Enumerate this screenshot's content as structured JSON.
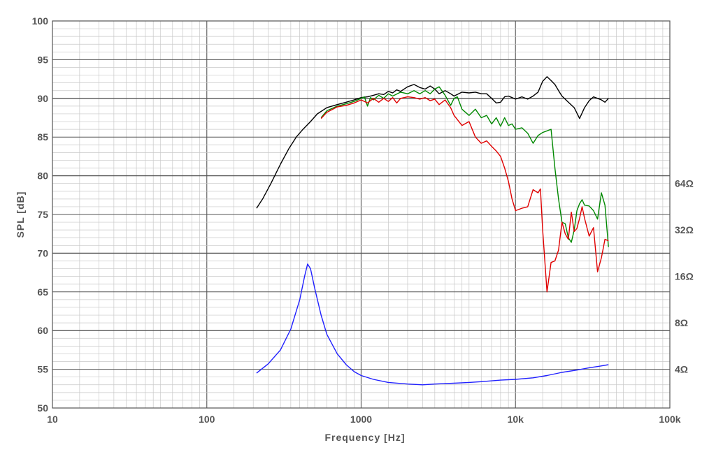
{
  "chart_data": {
    "type": "line",
    "xlabel": "Frequency [Hz]",
    "ylabel": "SPL [dB]",
    "x_scale": "log",
    "xlim": [
      10,
      100000
    ],
    "ylim": [
      50,
      100
    ],
    "grid": true,
    "x_ticks": [
      {
        "value": 10,
        "label": "10"
      },
      {
        "value": 100,
        "label": "100"
      },
      {
        "value": 1000,
        "label": "1000"
      },
      {
        "value": 10000,
        "label": "10k"
      },
      {
        "value": 100000,
        "label": "100k"
      }
    ],
    "y_ticks": [
      {
        "value": 50,
        "label": "50"
      },
      {
        "value": 55,
        "label": "55"
      },
      {
        "value": 60,
        "label": "60"
      },
      {
        "value": 65,
        "label": "65"
      },
      {
        "value": 70,
        "label": "70"
      },
      {
        "value": 75,
        "label": "75"
      },
      {
        "value": 80,
        "label": "80"
      },
      {
        "value": 85,
        "label": "85"
      },
      {
        "value": 90,
        "label": "90"
      },
      {
        "value": 95,
        "label": "95"
      },
      {
        "value": 100,
        "label": "100"
      }
    ],
    "right_axis_ticks": [
      {
        "at_spl": 55,
        "label": "4Ω"
      },
      {
        "at_spl": 61,
        "label": "8Ω"
      },
      {
        "at_spl": 67,
        "label": "16Ω"
      },
      {
        "at_spl": 73,
        "label": "32Ω"
      },
      {
        "at_spl": 79,
        "label": "64Ω"
      }
    ],
    "series": [
      {
        "color": "#000000",
        "points": [
          [
            210,
            75.8
          ],
          [
            230,
            77
          ],
          [
            260,
            79
          ],
          [
            300,
            81.5
          ],
          [
            340,
            83.5
          ],
          [
            380,
            85
          ],
          [
            420,
            86
          ],
          [
            470,
            87
          ],
          [
            520,
            88
          ],
          [
            600,
            88.8
          ],
          [
            700,
            89.2
          ],
          [
            800,
            89.5
          ],
          [
            900,
            89.8
          ],
          [
            1000,
            90.1
          ],
          [
            1100,
            90.2
          ],
          [
            1200,
            90.4
          ],
          [
            1300,
            90.6
          ],
          [
            1400,
            90.5
          ],
          [
            1500,
            90.9
          ],
          [
            1600,
            90.7
          ],
          [
            1700,
            91.1
          ],
          [
            1800,
            90.9
          ],
          [
            2000,
            91.5
          ],
          [
            2200,
            91.8
          ],
          [
            2400,
            91.4
          ],
          [
            2600,
            91.2
          ],
          [
            2800,
            91.6
          ],
          [
            3000,
            91.2
          ],
          [
            3200,
            90.6
          ],
          [
            3500,
            91
          ],
          [
            3800,
            90.6
          ],
          [
            4000,
            90.3
          ],
          [
            4500,
            90.8
          ],
          [
            5000,
            90.7
          ],
          [
            5500,
            90.8
          ],
          [
            6000,
            90.6
          ],
          [
            6500,
            90.6
          ],
          [
            7000,
            90
          ],
          [
            7500,
            89.4
          ],
          [
            8000,
            89.5
          ],
          [
            8500,
            90.2
          ],
          [
            9000,
            90.3
          ],
          [
            9500,
            90.1
          ],
          [
            10000,
            89.9
          ],
          [
            11000,
            90.2
          ],
          [
            12000,
            89.9
          ],
          [
            13000,
            90.3
          ],
          [
            14000,
            90.8
          ],
          [
            15000,
            92.2
          ],
          [
            16000,
            92.8
          ],
          [
            17000,
            92.3
          ],
          [
            18000,
            91.8
          ],
          [
            19000,
            91
          ],
          [
            20000,
            90.3
          ],
          [
            22000,
            89.5
          ],
          [
            24000,
            88.8
          ],
          [
            26000,
            87.4
          ],
          [
            28000,
            88.8
          ],
          [
            30000,
            89.7
          ],
          [
            32000,
            90.2
          ],
          [
            34000,
            90
          ],
          [
            36000,
            89.8
          ],
          [
            38000,
            89.5
          ],
          [
            40000,
            90
          ]
        ]
      },
      {
        "color": "#008800",
        "points": [
          [
            550,
            87.5
          ],
          [
            600,
            88.4
          ],
          [
            700,
            89
          ],
          [
            800,
            89.3
          ],
          [
            900,
            89.6
          ],
          [
            1000,
            90
          ],
          [
            1050,
            90.2
          ],
          [
            1100,
            89
          ],
          [
            1150,
            90.1
          ],
          [
            1200,
            89.8
          ],
          [
            1300,
            90.4
          ],
          [
            1400,
            90
          ],
          [
            1500,
            90.6
          ],
          [
            1600,
            90.3
          ],
          [
            1800,
            90.8
          ],
          [
            2000,
            90.6
          ],
          [
            2200,
            91
          ],
          [
            2400,
            90.6
          ],
          [
            2600,
            91
          ],
          [
            2800,
            90.6
          ],
          [
            3000,
            91.2
          ],
          [
            3200,
            91.5
          ],
          [
            3500,
            90.4
          ],
          [
            3800,
            89.1
          ],
          [
            4000,
            90
          ],
          [
            4200,
            90.2
          ],
          [
            4500,
            88.6
          ],
          [
            5000,
            87.8
          ],
          [
            5500,
            88.6
          ],
          [
            6000,
            87.5
          ],
          [
            6500,
            87.8
          ],
          [
            7000,
            86.7
          ],
          [
            7500,
            87.5
          ],
          [
            8000,
            86.4
          ],
          [
            8500,
            87.5
          ],
          [
            9000,
            86.5
          ],
          [
            9500,
            86.7
          ],
          [
            10000,
            86
          ],
          [
            11000,
            86.2
          ],
          [
            12000,
            85.5
          ],
          [
            13000,
            84.2
          ],
          [
            14000,
            85.2
          ],
          [
            15000,
            85.6
          ],
          [
            16000,
            85.8
          ],
          [
            17000,
            86
          ],
          [
            18000,
            81
          ],
          [
            19000,
            77
          ],
          [
            20000,
            74
          ],
          [
            21000,
            73.8
          ],
          [
            22000,
            72
          ],
          [
            23000,
            71.4
          ],
          [
            24000,
            73
          ],
          [
            25000,
            75.5
          ],
          [
            26000,
            76.4
          ],
          [
            27000,
            76.9
          ],
          [
            28000,
            76.2
          ],
          [
            30000,
            76.1
          ],
          [
            32000,
            75.5
          ],
          [
            34000,
            74.4
          ],
          [
            36000,
            77.8
          ],
          [
            38000,
            76.2
          ],
          [
            40000,
            70.8
          ]
        ]
      },
      {
        "color": "#e00000",
        "points": [
          [
            550,
            87.4
          ],
          [
            600,
            88.2
          ],
          [
            700,
            88.9
          ],
          [
            800,
            89.1
          ],
          [
            900,
            89.4
          ],
          [
            1000,
            89.8
          ],
          [
            1100,
            89.4
          ],
          [
            1200,
            90
          ],
          [
            1300,
            89.5
          ],
          [
            1400,
            90
          ],
          [
            1500,
            89.6
          ],
          [
            1600,
            90.1
          ],
          [
            1700,
            89.4
          ],
          [
            1800,
            90
          ],
          [
            2000,
            90.2
          ],
          [
            2200,
            90.1
          ],
          [
            2400,
            89.9
          ],
          [
            2600,
            90.1
          ],
          [
            2800,
            89.7
          ],
          [
            3000,
            89.9
          ],
          [
            3200,
            89.2
          ],
          [
            3500,
            89.8
          ],
          [
            3800,
            88.8
          ],
          [
            4000,
            87.8
          ],
          [
            4500,
            86.5
          ],
          [
            5000,
            87
          ],
          [
            5500,
            85
          ],
          [
            6000,
            84.2
          ],
          [
            6500,
            84.5
          ],
          [
            7000,
            83.8
          ],
          [
            7500,
            83.2
          ],
          [
            8000,
            82.5
          ],
          [
            8500,
            81
          ],
          [
            9000,
            79.3
          ],
          [
            9500,
            77
          ],
          [
            10000,
            75.5
          ],
          [
            11000,
            75.8
          ],
          [
            12000,
            76
          ],
          [
            13000,
            78.2
          ],
          [
            14000,
            77.8
          ],
          [
            14500,
            78.3
          ],
          [
            15000,
            73
          ],
          [
            16000,
            65
          ],
          [
            17000,
            68.8
          ],
          [
            18000,
            69
          ],
          [
            19000,
            70.4
          ],
          [
            20000,
            74
          ],
          [
            21000,
            72.5
          ],
          [
            22000,
            71.8
          ],
          [
            23000,
            75.3
          ],
          [
            24000,
            72.8
          ],
          [
            25000,
            73.2
          ],
          [
            26000,
            74.5
          ],
          [
            27000,
            76
          ],
          [
            28000,
            74.5
          ],
          [
            30000,
            72.2
          ],
          [
            32000,
            73.3
          ],
          [
            34000,
            67.6
          ],
          [
            36000,
            69.4
          ],
          [
            38000,
            71.8
          ],
          [
            40000,
            71.6
          ]
        ]
      },
      {
        "color": "#2020ff",
        "points": [
          [
            210,
            54.5
          ],
          [
            250,
            55.7
          ],
          [
            300,
            57.5
          ],
          [
            350,
            60.2
          ],
          [
            400,
            64
          ],
          [
            430,
            67
          ],
          [
            450,
            68.6
          ],
          [
            470,
            68
          ],
          [
            500,
            65.5
          ],
          [
            550,
            62
          ],
          [
            600,
            59.5
          ],
          [
            700,
            57
          ],
          [
            800,
            55.6
          ],
          [
            900,
            54.7
          ],
          [
            1000,
            54.2
          ],
          [
            1200,
            53.7
          ],
          [
            1500,
            53.3
          ],
          [
            2000,
            53.1
          ],
          [
            2500,
            53
          ],
          [
            3000,
            53.1
          ],
          [
            4000,
            53.2
          ],
          [
            5000,
            53.3
          ],
          [
            6000,
            53.4
          ],
          [
            8000,
            53.6
          ],
          [
            10000,
            53.7
          ],
          [
            13000,
            53.9
          ],
          [
            16000,
            54.2
          ],
          [
            20000,
            54.6
          ],
          [
            25000,
            54.9
          ],
          [
            30000,
            55.2
          ],
          [
            35000,
            55.4
          ],
          [
            40000,
            55.6
          ]
        ]
      }
    ]
  }
}
